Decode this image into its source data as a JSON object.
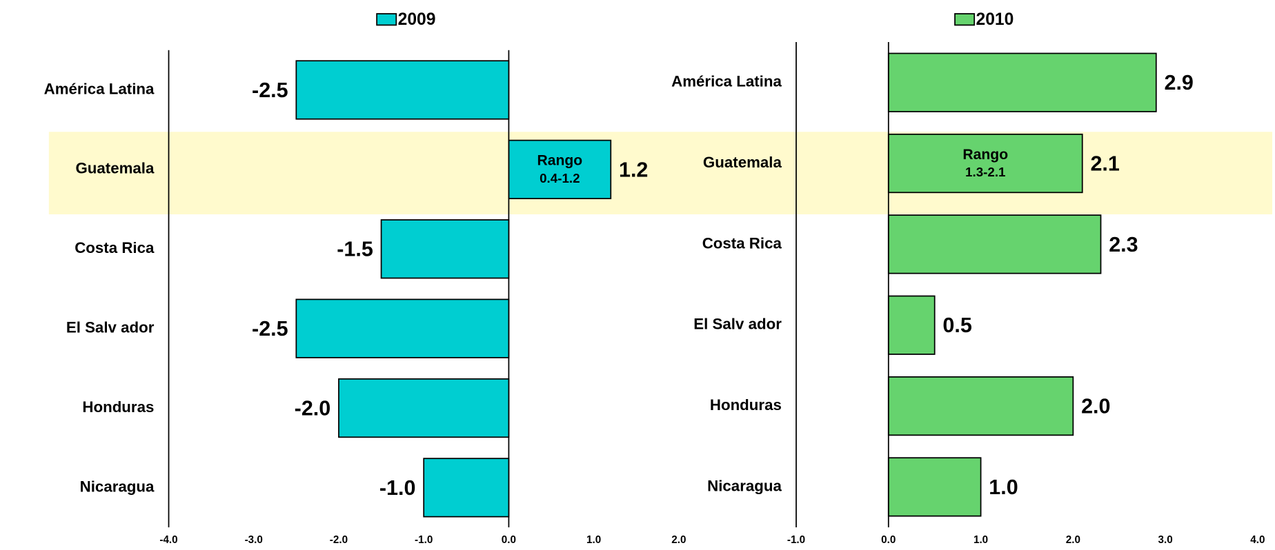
{
  "chart_data": [
    {
      "type": "bar",
      "orientation": "horizontal",
      "categories": [
        "América Latina",
        "Guatemala",
        "Costa Rica",
        "El Salv ador",
        "Honduras",
        "Nicaragua"
      ],
      "series": [
        {
          "name": "2009",
          "color": "#00CED1",
          "values": [
            -2.5,
            1.2,
            -1.5,
            -2.5,
            -2.0,
            -1.0
          ],
          "value_labels": [
            "-2.5",
            "1.2",
            "-1.5",
            "-2.5",
            "-2.0",
            "-1.0"
          ]
        }
      ],
      "annotation": [
        "Rango",
        "0.4-1.2"
      ],
      "xlim": [
        -4,
        2
      ],
      "xticks": [
        {
          "value": -4,
          "label": "-4.0"
        },
        {
          "value": -3,
          "label": "-3.0"
        },
        {
          "value": -2,
          "label": "-2.0"
        },
        {
          "value": -1,
          "label": "-1.0"
        },
        {
          "value": 0,
          "label": "0.0"
        },
        {
          "value": 1,
          "label": "1.0"
        },
        {
          "value": 2,
          "label": "2.0"
        }
      ],
      "grid": false,
      "legend": "top"
    },
    {
      "type": "bar",
      "orientation": "horizontal",
      "categories": [
        "América Latina",
        "Guatemala",
        "Costa Rica",
        "El Salv ador",
        "Honduras",
        "Nicaragua"
      ],
      "series": [
        {
          "name": "2010",
          "color": "#66D36E",
          "values": [
            2.9,
            2.1,
            2.3,
            0.5,
            2.0,
            1.0
          ],
          "value_labels": [
            "2.9",
            "2.1",
            "2.3",
            "0.5",
            "2.0",
            "1.0"
          ]
        }
      ],
      "annotation": [
        "Rango",
        "1.3-2.1"
      ],
      "xlim": [
        -1,
        4
      ],
      "xticks": [
        {
          "value": -1,
          "label": "-1.0"
        },
        {
          "value": 0,
          "label": "0.0"
        },
        {
          "value": 1,
          "label": "1.0"
        },
        {
          "value": 2,
          "label": "2.0"
        },
        {
          "value": 3,
          "label": "3.0"
        },
        {
          "value": 4,
          "label": "4.0"
        }
      ],
      "grid": false,
      "legend": "top"
    }
  ]
}
